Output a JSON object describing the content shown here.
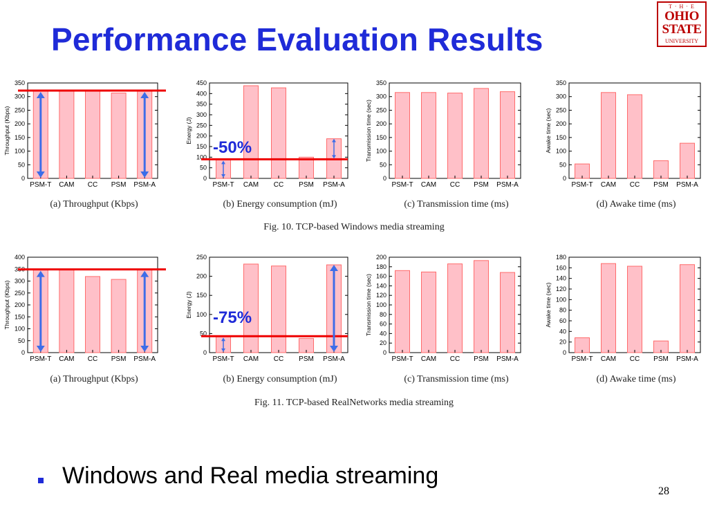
{
  "slide": {
    "title": "Performance Evaluation Results",
    "bullet": "Windows and Real media streaming",
    "page_number": "28",
    "logo_lines": [
      "T · H · E",
      "OHIO",
      "STATE",
      "UNIVERSITY"
    ]
  },
  "colors": {
    "title": "#1f2bd8",
    "bar_fill": "#ffc0c8",
    "bar_stroke": "#ff6b6b",
    "reference_line": "#ee0000",
    "arrow": "#3d6de8",
    "annotation": "#1f2bd8",
    "logo": "#bb0000"
  },
  "figures": [
    {
      "caption": "Fig. 10.   TCP-based Windows media streaming",
      "subplots": [
        {
          "caption": "(a)  Throughput  (Kbps)",
          "ylabel": "Throughput (Kbps)",
          "ylim": [
            0,
            350
          ],
          "ticks": [
            0,
            50,
            100,
            150,
            200,
            250,
            300,
            350
          ],
          "annotation": "",
          "highlight": "throughput"
        },
        {
          "caption": "(b)  Energy  consumption  (mJ)",
          "ylabel": "Energy (J)",
          "ylim": [
            0,
            450
          ],
          "ticks": [
            0,
            50,
            100,
            150,
            200,
            250,
            300,
            350,
            400,
            450
          ],
          "annotation": "-50%",
          "highlight": "energy"
        },
        {
          "caption": "(c)  Transmission  time  (ms)",
          "ylabel": "Transmission time (sec)",
          "ylim": [
            0,
            350
          ],
          "ticks": [
            0,
            50,
            100,
            150,
            200,
            250,
            300,
            350
          ],
          "annotation": "",
          "highlight": "none"
        },
        {
          "caption": "(d)  Awake  time  (ms)",
          "ylabel": "Awake time (sec)",
          "ylim": [
            0,
            350
          ],
          "ticks": [
            0,
            50,
            100,
            150,
            200,
            250,
            300,
            350
          ],
          "annotation": "",
          "highlight": "none"
        }
      ]
    },
    {
      "caption": "Fig. 11.   TCP-based RealNetworks media streaming",
      "subplots": [
        {
          "caption": "(a)  Throughput  (Kbps)",
          "ylabel": "Throughput (Kbps)",
          "ylim": [
            0,
            400
          ],
          "ticks": [
            0,
            50,
            100,
            150,
            200,
            250,
            300,
            350,
            400
          ],
          "annotation": "",
          "highlight": "throughput"
        },
        {
          "caption": "(b)  Energy  consumption  (mJ)",
          "ylabel": "Energy (J)",
          "ylim": [
            0,
            250
          ],
          "ticks": [
            0,
            50,
            100,
            150,
            200,
            250
          ],
          "annotation": "-75%",
          "highlight": "energy"
        },
        {
          "caption": "(c)  Transmission  time  (ms)",
          "ylabel": "Transmission time (sec)",
          "ylim": [
            0,
            200
          ],
          "ticks": [
            0,
            20,
            40,
            60,
            80,
            100,
            120,
            140,
            160,
            180,
            200
          ],
          "annotation": "",
          "highlight": "none"
        },
        {
          "caption": "(d)  Awake  time  (ms)",
          "ylabel": "Awake time (sec)",
          "ylim": [
            0,
            180
          ],
          "ticks": [
            0,
            20,
            40,
            60,
            80,
            100,
            120,
            140,
            160,
            180
          ],
          "annotation": "",
          "highlight": "none"
        }
      ]
    }
  ],
  "chart_data": [
    {
      "type": "bar",
      "title": "(a)  Throughput  (Kbps)",
      "xlabel": "",
      "ylabel": "Throughput (Kbps)",
      "ylim": [
        0,
        350
      ],
      "categories": [
        "PSM-T",
        "CAM",
        "CC",
        "PSM",
        "PSM-A"
      ],
      "values": [
        322,
        322,
        322,
        313,
        322
      ],
      "reference_line": 322
    },
    {
      "type": "bar",
      "title": "(b)  Energy  consumption  (mJ)",
      "xlabel": "",
      "ylabel": "Energy (J)",
      "ylim": [
        0,
        450
      ],
      "categories": [
        "PSM-T",
        "CAM",
        "CC",
        "PSM",
        "PSM-A"
      ],
      "values": [
        90,
        437,
        427,
        100,
        187
      ],
      "reference_line": 90
    },
    {
      "type": "bar",
      "title": "(c)  Transmission  time  (ms)",
      "xlabel": "",
      "ylabel": "Transmission time (sec)",
      "ylim": [
        0,
        350
      ],
      "categories": [
        "PSM-T",
        "CAM",
        "CC",
        "PSM",
        "PSM-A"
      ],
      "values": [
        315,
        315,
        313,
        330,
        318
      ]
    },
    {
      "type": "bar",
      "title": "(d)  Awake  time  (ms)",
      "xlabel": "",
      "ylabel": "Awake time (sec)",
      "ylim": [
        0,
        350
      ],
      "categories": [
        "PSM-T",
        "CAM",
        "CC",
        "PSM",
        "PSM-A"
      ],
      "values": [
        53,
        315,
        307,
        65,
        129
      ]
    },
    {
      "type": "bar",
      "title": "(a)  Throughput  (Kbps)",
      "xlabel": "",
      "ylabel": "Throughput (Kbps)",
      "ylim": [
        0,
        400
      ],
      "categories": [
        "PSM-T",
        "CAM",
        "CC",
        "PSM",
        "PSM-A"
      ],
      "values": [
        350,
        350,
        319,
        307,
        350
      ],
      "reference_line": 349
    },
    {
      "type": "bar",
      "title": "(b)  Energy  consumption  (mJ)",
      "xlabel": "",
      "ylabel": "Energy (J)",
      "ylim": [
        0,
        250
      ],
      "categories": [
        "PSM-T",
        "CAM",
        "CC",
        "PSM",
        "PSM-A"
      ],
      "values": [
        43,
        232,
        227,
        37,
        230
      ],
      "reference_line": 43
    },
    {
      "type": "bar",
      "title": "(c)  Transmission  time  (ms)",
      "xlabel": "",
      "ylabel": "Transmission time (sec)",
      "ylim": [
        0,
        200
      ],
      "categories": [
        "PSM-T",
        "CAM",
        "CC",
        "PSM",
        "PSM-A"
      ],
      "values": [
        172,
        169,
        186,
        193,
        168
      ]
    },
    {
      "type": "bar",
      "title": "(d)  Awake  time  (ms)",
      "xlabel": "",
      "ylabel": "Awake time (sec)",
      "ylim": [
        0,
        180
      ],
      "categories": [
        "PSM-T",
        "CAM",
        "CC",
        "PSM",
        "PSM-A"
      ],
      "values": [
        28,
        168,
        163,
        22,
        166
      ]
    }
  ]
}
